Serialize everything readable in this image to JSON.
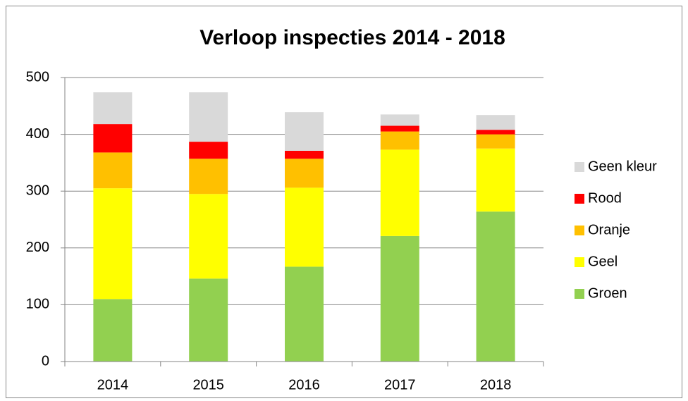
{
  "chart_data": {
    "type": "stacked_bar",
    "title": "Verloop inspecties 2014 - 2018",
    "categories": [
      "2014",
      "2015",
      "2016",
      "2017",
      "2018"
    ],
    "series": [
      {
        "name": "Groen",
        "color": "#92d050",
        "values": [
          110,
          146,
          167,
          221,
          264
        ]
      },
      {
        "name": "Geel",
        "color": "#ffff00",
        "values": [
          195,
          149,
          139,
          152,
          111
        ]
      },
      {
        "name": "Oranje",
        "color": "#ffc000",
        "values": [
          63,
          62,
          51,
          32,
          25
        ]
      },
      {
        "name": "Rood",
        "color": "#ff0000",
        "values": [
          50,
          30,
          14,
          10,
          8
        ]
      },
      {
        "name": "Geen kleur",
        "color": "#d9d9d9",
        "values": [
          56,
          87,
          68,
          20,
          26
        ]
      }
    ],
    "ylim": [
      0,
      500
    ],
    "yticks": [
      0,
      100,
      200,
      300,
      400,
      500
    ],
    "grid": true,
    "legend": "right"
  }
}
